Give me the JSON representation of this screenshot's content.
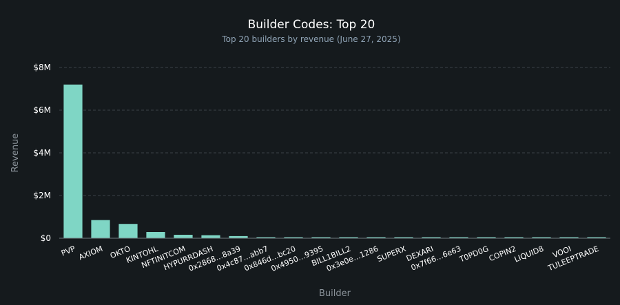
{
  "colors": {
    "background": "#151a1d",
    "bar": "#7fd6c5",
    "title": "#ffffff",
    "subtitle": "#8fa3b5",
    "axis_label": "#8a9299",
    "tick_label": "#ffffff",
    "grid": "#3a4248",
    "axis_line": "#6f7a80"
  },
  "chart_data": {
    "type": "bar",
    "title": "Builder Codes: Top 20",
    "subtitle": "Top 20 builders by revenue (June 27, 2025)",
    "xlabel": "Builder",
    "ylabel": "Revenue",
    "ylim": [
      0,
      8000000
    ],
    "yticks": [
      0,
      2000000,
      4000000,
      6000000,
      8000000
    ],
    "ytick_labels": [
      "$0",
      "$2M",
      "$4M",
      "$6M",
      "$8M"
    ],
    "grid": "horizontal dashed",
    "categories": [
      "PVP",
      "AXIOM",
      "OKTO",
      "KINTOHL",
      "NFTINITCOM",
      "HYPURRDASH",
      "0x2868…8a39",
      "0x4c87…abb7",
      "0x846d…bc20",
      "0x4950…9395",
      "BILL1BILL2",
      "0x3e0e…1286",
      "SUPERX",
      "DEXARI",
      "0x7f66…6e63",
      "T0PD0G",
      "COPIN2",
      "LIQUID8",
      "VOOI",
      "TULEEPTRADE"
    ],
    "values": [
      7200000,
      850000,
      670000,
      290000,
      160000,
      140000,
      100000,
      45000,
      40000,
      35000,
      30000,
      28000,
      26000,
      24000,
      22000,
      20000,
      18000,
      17000,
      15000,
      13000
    ]
  }
}
